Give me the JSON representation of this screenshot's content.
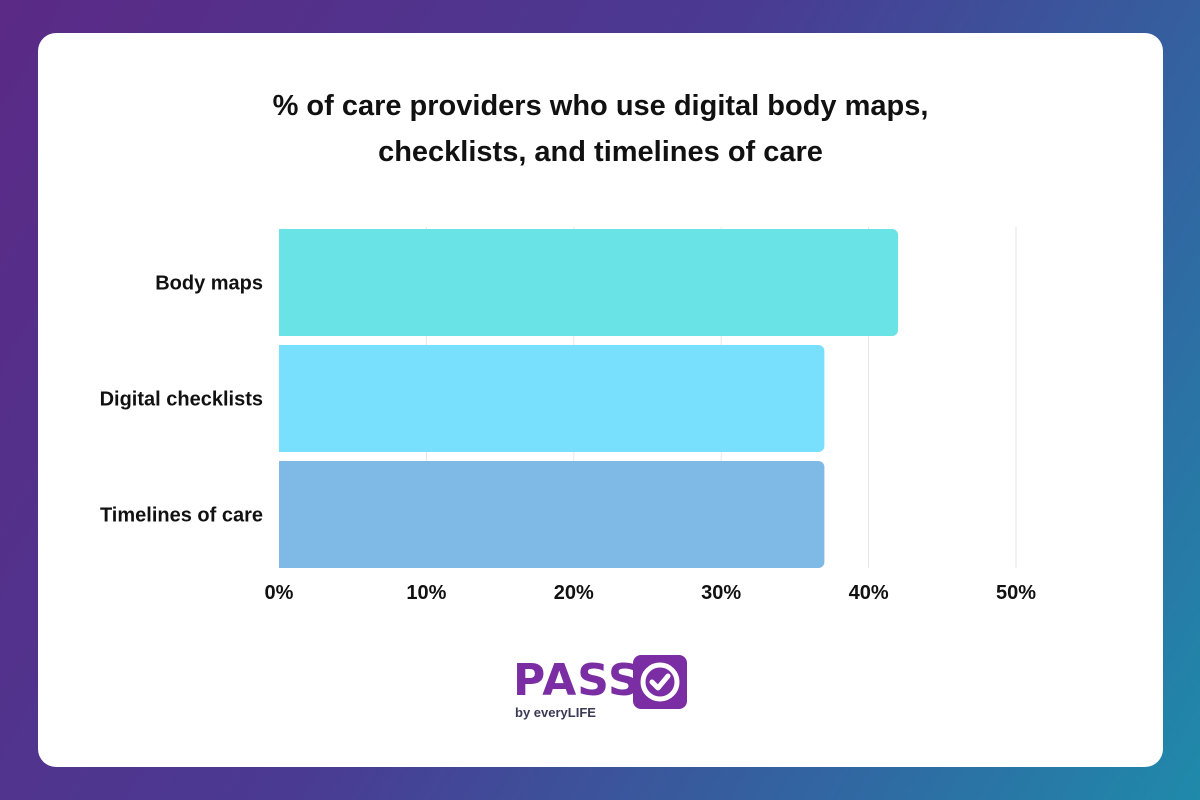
{
  "title_lines": [
    "% of care providers who use digital body maps,",
    "checklists, and timelines of care"
  ],
  "logo": {
    "brand": "PASS",
    "sub": "by everyLIFE",
    "color": "#7b2ea3"
  },
  "chart_data": {
    "type": "bar",
    "orientation": "horizontal",
    "title": "% of care providers who use digital body maps, checklists, and timelines of care",
    "categories": [
      "Body maps",
      "Digital checklists",
      "Timelines of care"
    ],
    "values": [
      42,
      37,
      37
    ],
    "colors": [
      "#6ae3e6",
      "#78dffc",
      "#7fbae6"
    ],
    "xlim": [
      0,
      50
    ],
    "xticks": [
      0,
      10,
      20,
      30,
      40,
      50
    ],
    "tick_format": "{}%",
    "grid": "vertical",
    "xlabel": "",
    "ylabel": ""
  }
}
